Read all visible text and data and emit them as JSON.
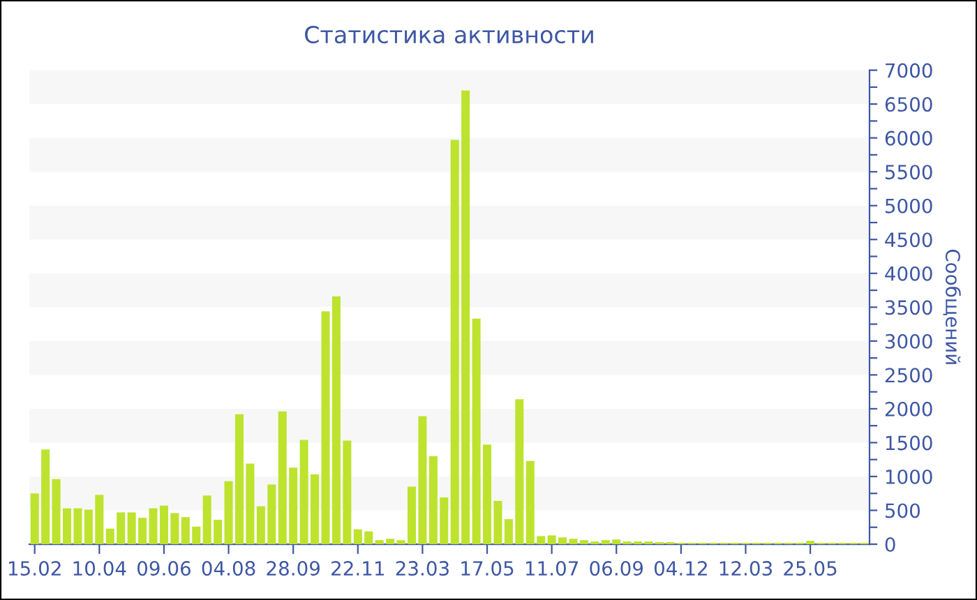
{
  "chart_data": {
    "type": "bar",
    "title": "Статистика активности",
    "ylabel": "Сообщений",
    "categories": [
      "15.02",
      null,
      null,
      null,
      null,
      null,
      "10.04",
      null,
      null,
      null,
      null,
      null,
      "09.06",
      null,
      null,
      null,
      null,
      null,
      "04.08",
      null,
      null,
      null,
      null,
      null,
      "28.09",
      null,
      null,
      null,
      null,
      null,
      "22.11",
      null,
      null,
      null,
      null,
      null,
      "23.03",
      null,
      null,
      null,
      null,
      null,
      "17.05",
      null,
      null,
      null,
      null,
      null,
      "11.07",
      null,
      null,
      null,
      null,
      null,
      "06.09",
      null,
      null,
      null,
      null,
      null,
      "04.12",
      null,
      null,
      null,
      null,
      null,
      "12.03",
      null,
      null,
      null,
      null,
      null,
      "25.05",
      null,
      null,
      null,
      null,
      null
    ],
    "values": [
      750,
      1400,
      960,
      530,
      530,
      510,
      730,
      230,
      470,
      470,
      390,
      530,
      570,
      460,
      400,
      260,
      720,
      360,
      930,
      1920,
      1190,
      560,
      880,
      1960,
      1130,
      1540,
      1030,
      3440,
      3660,
      1530,
      220,
      190,
      60,
      80,
      60,
      850,
      1890,
      1300,
      690,
      5970,
      6700,
      3330,
      1470,
      640,
      370,
      2140,
      1230,
      120,
      130,
      100,
      80,
      60,
      40,
      60,
      70,
      40,
      40,
      40,
      30,
      30,
      20,
      20,
      20,
      20,
      20,
      20,
      20,
      20,
      20,
      20,
      20,
      20,
      50,
      20,
      20,
      20,
      20,
      20
    ],
    "color": "#bde32e",
    "ylim": [
      0,
      7000
    ],
    "yticks": [
      0,
      {
        "value": 250,
        "label": null
      },
      500,
      {
        "value": 750,
        "label": null
      },
      1000,
      {
        "value": 1250,
        "label": null
      },
      1500,
      {
        "value": 1750,
        "label": null
      },
      2000,
      {
        "value": 2250,
        "label": null
      },
      2500,
      {
        "value": 2750,
        "label": null
      },
      3000,
      {
        "value": 3250,
        "label": null
      },
      3500,
      {
        "value": 3750,
        "label": null
      },
      4000,
      {
        "value": 4250,
        "label": null
      },
      4500,
      {
        "value": 4750,
        "label": null
      },
      5000,
      {
        "value": 5250,
        "label": null
      },
      5500,
      {
        "value": 5750,
        "label": null
      },
      6000,
      {
        "value": 6250,
        "label": null
      },
      6500,
      {
        "value": 6750,
        "label": null
      },
      7000
    ],
    "bands": [
      {
        "axis": "y",
        "from": 500,
        "to": 1000,
        "color": "#f7f7f7"
      },
      {
        "axis": "y",
        "from": 1500,
        "to": 2000,
        "color": "#f7f7f7"
      },
      {
        "axis": "y",
        "from": 2500,
        "to": 3000,
        "color": "#f7f7f7"
      },
      {
        "axis": "y",
        "from": 3500,
        "to": 4000,
        "color": "#f7f7f7"
      },
      {
        "axis": "y",
        "from": 4500,
        "to": 5000,
        "color": "#f7f7f7"
      },
      {
        "axis": "y",
        "from": 5500,
        "to": 6000,
        "color": "#f7f7f7"
      },
      {
        "axis": "y",
        "from": 6500,
        "to": 7000,
        "color": "#f7f7f7"
      }
    ],
    "grid": false,
    "legend": false
  }
}
